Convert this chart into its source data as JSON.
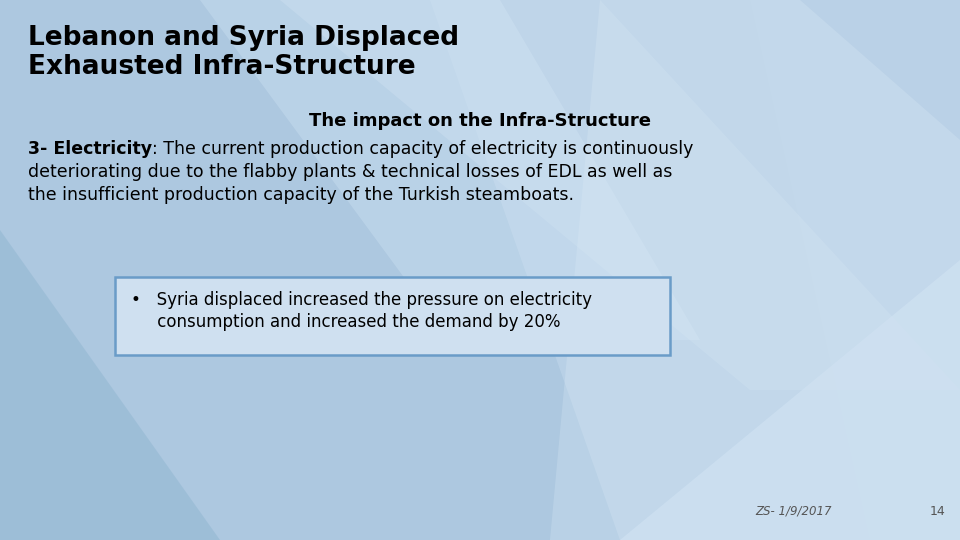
{
  "title_line1": "Lebanon and Syria Displaced",
  "title_line2": "Exhausted Infra-Structure",
  "subtitle": "The impact on the Infra-Structure",
  "body_bold": "3- Electricity",
  "body_rest": ": The current production capacity of electricity is continuously\ndeteriorating due to the flabby plants & technical losses of EDL as well as\nthe insufficient production capacity of the Turkish steamboats.",
  "bullet_line1": "•   Syria displaced increased the pressure on electricity",
  "bullet_line2": "     consumption and increased the demand by 20%",
  "footer_date": "ZS- 1/9/2017",
  "footer_page": "14",
  "bg_base": "#adc8e0",
  "poly_colors": [
    "#c2d8ec",
    "#bdd3e8",
    "#d4e5f5",
    "#8fb5d0",
    "#ccdff0",
    "#e0eef8"
  ],
  "title_color": "#000000",
  "text_color": "#000000",
  "box_border_color": "#6a9cc8",
  "box_bg_color": "#cfe0f0",
  "footer_color": "#555555"
}
